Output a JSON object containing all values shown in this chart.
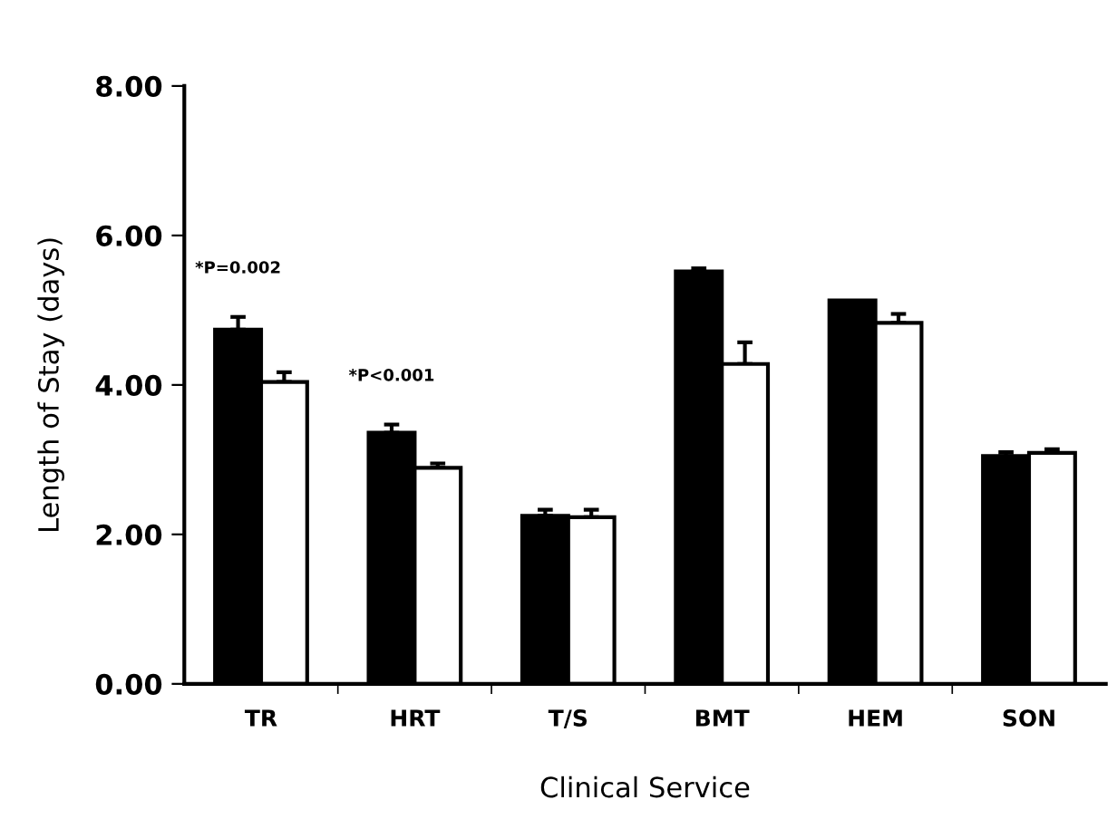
{
  "chart_data": {
    "type": "bar",
    "xlabel": "Clinical Service",
    "ylabel": "Length of Stay (days)",
    "categories": [
      "TR",
      "HRT",
      "T/S",
      "BMT",
      "HEM",
      "SON"
    ],
    "series": [
      {
        "color": "#000000",
        "values": [
          4.74,
          3.36,
          2.25,
          5.52,
          5.13,
          3.05
        ],
        "errors": [
          [
            4.74,
            4.91
          ],
          [
            3.36,
            3.47
          ],
          [
            2.25,
            2.33
          ],
          [
            5.52,
            5.56
          ],
          null,
          [
            3.05,
            3.1
          ]
        ]
      },
      {
        "color": "#ffffff",
        "values": [
          4.04,
          2.89,
          2.23,
          4.28,
          4.83,
          3.09
        ],
        "errors": [
          [
            4.04,
            4.17
          ],
          [
            2.89,
            2.95
          ],
          [
            2.23,
            2.33
          ],
          [
            4.28,
            4.57
          ],
          [
            4.83,
            4.95
          ],
          [
            3.09,
            3.14
          ]
        ]
      }
    ],
    "ylim": [
      0,
      8
    ],
    "yticks": [
      {
        "value": 0,
        "label": "0.00"
      },
      {
        "value": 2,
        "label": "2.00"
      },
      {
        "value": 4,
        "label": "4.00"
      },
      {
        "value": 6,
        "label": "6.00"
      },
      {
        "value": 8,
        "label": "8.00"
      }
    ],
    "annotations": [
      "*P=0.002",
      "*P<0.001"
    ],
    "grid": false,
    "legend": false
  }
}
